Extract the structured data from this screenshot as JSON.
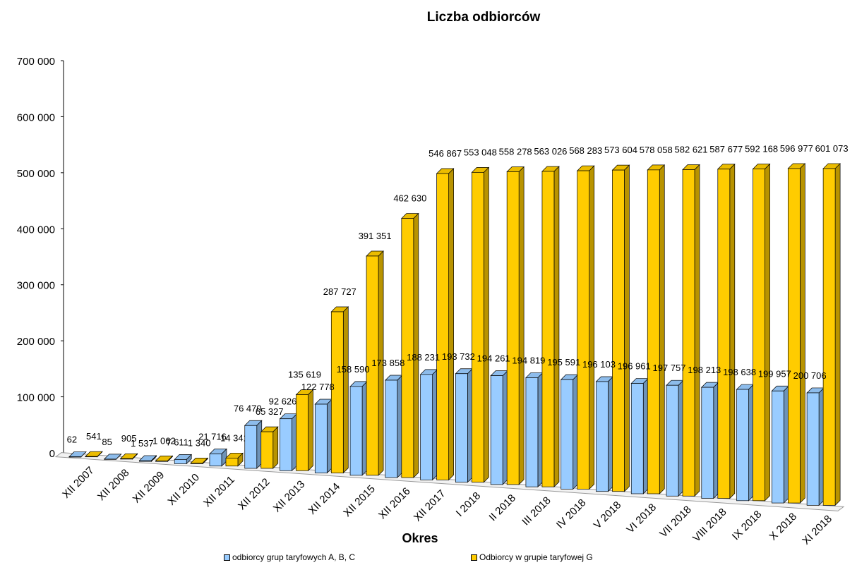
{
  "chart_data": {
    "type": "bar",
    "title": "Liczba odbiorców",
    "xlabel": "Okres",
    "ylabel": "",
    "ylim": [
      0,
      700000
    ],
    "yticks": [
      "0",
      "100 000",
      "200 000",
      "300 000",
      "400 000",
      "500 000",
      "600 000",
      "700 000"
    ],
    "categories": [
      "XII 2007",
      "XII 2008",
      "XII 2009",
      "XII 2010",
      "XII 2011",
      "XII 2012",
      "XII 2013",
      "XII 2014",
      "XII 2015",
      "XII 2016",
      "XII 2017",
      "I 2018",
      "II 2018",
      "III 2018",
      "IV 2018",
      "V 2018",
      "VI 2018",
      "VII 2018",
      "VIII 2018",
      "IX 2018",
      "X 2018",
      "XI 2018"
    ],
    "series": [
      {
        "name": "odbiorcy grup taryfowych A, B, C",
        "color": "#99ccff",
        "values": [
          62,
          85,
          1537,
          7611,
          21716,
          76470,
          92626,
          122778,
          158590,
          173858,
          188231,
          193732,
          194261,
          194819,
          195591,
          196103,
          196961,
          197757,
          198213,
          198638,
          199957,
          200706
        ],
        "labels": [
          "62",
          "85",
          "1 537",
          "7 611",
          "21 716",
          "76 470",
          "92 626",
          "122 778",
          "158 590",
          "173 858",
          "188 231",
          "193 732",
          "194 261",
          "194 819",
          "195 591",
          "196 103",
          "196 961",
          "197 757",
          "198 213",
          "198 638",
          "199 957",
          "200 706"
        ]
      },
      {
        "name": "Odbiorcy w grupie taryfowej G",
        "color": "#ffcc00",
        "values": [
          541,
          905,
          1062,
          1340,
          14341,
          65327,
          135619,
          287727,
          391351,
          462630,
          546867,
          553048,
          558278,
          563026,
          568283,
          573604,
          578058,
          582621,
          587677,
          592168,
          596977,
          601073
        ],
        "labels": [
          "541",
          "905",
          "1 062",
          "1 340",
          "14 341",
          "65 327",
          "135 619",
          "287 727",
          "391 351",
          "462 630",
          "546 867",
          "553 048",
          "558 278",
          "563 026",
          "568 283",
          "573 604",
          "578 058",
          "582 621",
          "587 677",
          "592 168",
          "596 977",
          "601 073"
        ]
      }
    ],
    "legend_position": "bottom",
    "grid": false
  }
}
